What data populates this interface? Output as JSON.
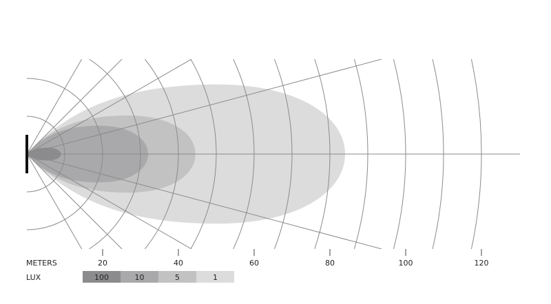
{
  "diagram": {
    "type": "beam-pattern",
    "distance_unit_label": "METERS",
    "distance_ticks": [
      20,
      40,
      60,
      80,
      100,
      120
    ],
    "arc_step_m": 10,
    "arc_max_m": 120,
    "ray_angles_deg": [
      15,
      30,
      45,
      60
    ],
    "lux_label": "LUX",
    "zones": [
      {
        "lux": "100",
        "reach_m": 9,
        "half_width_m": 1.7,
        "color": "#8c8c8e"
      },
      {
        "lux": "10",
        "reach_m": 32,
        "half_width_m": 7.5,
        "color": "#a9a9ab"
      },
      {
        "lux": "5",
        "reach_m": 44.5,
        "half_width_m": 10.2,
        "color": "#c2c2c3"
      },
      {
        "lux": "1",
        "reach_m": 84,
        "half_width_m": 18.4,
        "color": "#dcdcdd"
      }
    ],
    "line_color": "#8a8a8a",
    "lamp_color": "#111111"
  }
}
